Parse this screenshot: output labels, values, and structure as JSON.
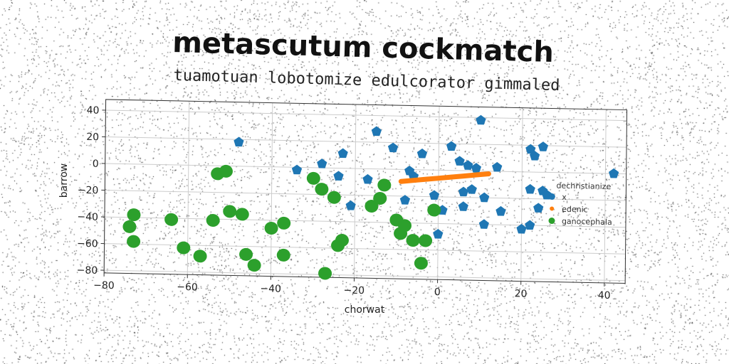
{
  "chart_data": {
    "type": "scatter",
    "title": "metascutum cockmatch",
    "subtitle": "tuamotuan lobotomize edulcorator gimmaled",
    "xlabel": "chorwat",
    "ylabel": "barrow",
    "xlim": [
      -80,
      45
    ],
    "ylim": [
      -82,
      48
    ],
    "xticks": [
      -80,
      -60,
      -40,
      -20,
      0,
      20,
      40
    ],
    "yticks": [
      40,
      20,
      0,
      -20,
      -40,
      -60,
      -80
    ],
    "grid": true,
    "legend": {
      "title": "dechristianize",
      "position": "right"
    },
    "colors": {
      "x": "#1f77b4",
      "edenic": "#ff7f0e",
      "ganocephala": "#2ca02c"
    },
    "series": [
      {
        "name": "x",
        "marker": "pentagon",
        "points": [
          [
            10,
            38
          ],
          [
            -48,
            18
          ],
          [
            -15,
            28
          ],
          [
            -11,
            16
          ],
          [
            3,
            18
          ],
          [
            -4,
            12
          ],
          [
            22,
            17
          ],
          [
            25,
            19
          ],
          [
            23,
            12
          ],
          [
            5,
            7
          ],
          [
            -28,
            3
          ],
          [
            -23,
            11
          ],
          [
            -34,
            -2
          ],
          [
            -24,
            -6
          ],
          [
            -17,
            -8
          ],
          [
            -7,
            -1
          ],
          [
            -6,
            -5
          ],
          [
            7,
            4
          ],
          [
            9,
            2
          ],
          [
            14,
            3
          ],
          [
            6,
            -16
          ],
          [
            8,
            -14
          ],
          [
            11,
            -20
          ],
          [
            22,
            -13
          ],
          [
            25,
            -14
          ],
          [
            26,
            -17
          ],
          [
            -8,
            -23
          ],
          [
            -1,
            -19
          ],
          [
            -21,
            -28
          ],
          [
            1,
            -30
          ],
          [
            6,
            -27
          ],
          [
            15,
            -30
          ],
          [
            11,
            -40
          ],
          [
            22,
            -40
          ],
          [
            24,
            -27
          ],
          [
            20,
            -43
          ],
          [
            0,
            -48
          ],
          [
            42,
            0
          ]
        ]
      },
      {
        "name": "edenic",
        "marker": "line",
        "points": [
          [
            -9,
            -9
          ],
          [
            -6,
            -8
          ],
          [
            -3,
            -7
          ],
          [
            0,
            -6
          ],
          [
            3,
            -5
          ],
          [
            6,
            -4
          ],
          [
            9,
            -3
          ],
          [
            12,
            -2
          ]
        ]
      },
      {
        "name": "ganocephala",
        "marker": "circle",
        "points": [
          [
            -53,
            -6
          ],
          [
            -51,
            -4
          ],
          [
            -30,
            -8
          ],
          [
            -28,
            -16
          ],
          [
            -25,
            -22
          ],
          [
            -16,
            -28
          ],
          [
            -13,
            -12
          ],
          [
            -14,
            -22
          ],
          [
            -10,
            -38
          ],
          [
            -8,
            -42
          ],
          [
            -9,
            -48
          ],
          [
            -6,
            -53
          ],
          [
            -3,
            -53
          ],
          [
            -1,
            -30
          ],
          [
            -4,
            -70
          ],
          [
            -73,
            -38
          ],
          [
            -74,
            -47
          ],
          [
            -73,
            -58
          ],
          [
            -64,
            -41
          ],
          [
            -61,
            -62
          ],
          [
            -57,
            -68
          ],
          [
            -54,
            -41
          ],
          [
            -50,
            -34
          ],
          [
            -47,
            -36
          ],
          [
            -46,
            -66
          ],
          [
            -44,
            -74
          ],
          [
            -40,
            -46
          ],
          [
            -37,
            -42
          ],
          [
            -37,
            -66
          ],
          [
            -27,
            -79
          ],
          [
            -23,
            -54
          ],
          [
            -24,
            -58
          ]
        ]
      }
    ]
  }
}
